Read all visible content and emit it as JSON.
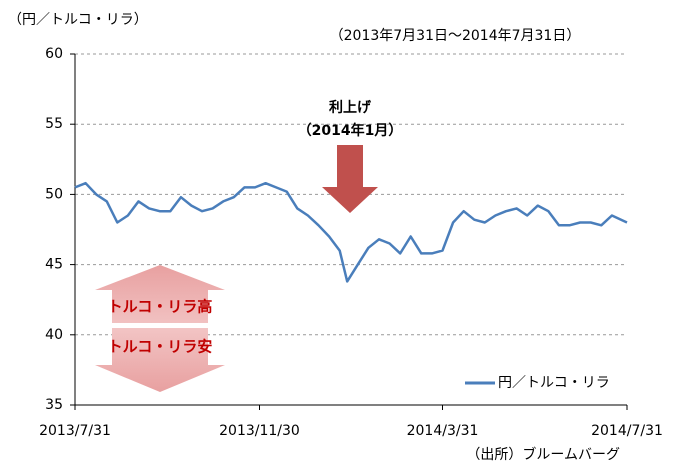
{
  "chart_data": {
    "type": "line",
    "y_label": "（円／トルコ・リラ）",
    "subtitle": "（2013年7月31日～2014年7月31日）",
    "annotation": {
      "title": "利上げ",
      "date": "（2014年1月）"
    },
    "arrow_labels": {
      "up": "トルコ・リラ高",
      "down": "トルコ・リラ安"
    },
    "source": "（出所）ブルームバーグ",
    "x": [
      "2013/7/31",
      "2013/8/7",
      "2013/8/14",
      "2013/8/21",
      "2013/8/28",
      "2013/9/4",
      "2013/9/11",
      "2013/9/18",
      "2013/9/25",
      "2013/10/2",
      "2013/10/9",
      "2013/10/16",
      "2013/10/23",
      "2013/10/30",
      "2013/11/6",
      "2013/11/13",
      "2013/11/20",
      "2013/11/27",
      "2013/12/4",
      "2013/12/11",
      "2013/12/18",
      "2013/12/25",
      "2014/1/1",
      "2014/1/8",
      "2014/1/15",
      "2014/1/22",
      "2014/1/27",
      "2014/2/3",
      "2014/2/10",
      "2014/2/17",
      "2014/2/24",
      "2014/3/3",
      "2014/3/10",
      "2014/3/17",
      "2014/3/24",
      "2014/3/31",
      "2014/4/7",
      "2014/4/14",
      "2014/4/21",
      "2014/4/28",
      "2014/5/5",
      "2014/5/12",
      "2014/5/19",
      "2014/5/26",
      "2014/6/2",
      "2014/6/9",
      "2014/6/16",
      "2014/6/23",
      "2014/6/30",
      "2014/7/7",
      "2014/7/14",
      "2014/7/21",
      "2014/7/31"
    ],
    "series": [
      {
        "name": "円／トルコ・リラ",
        "color": "#4a7ebb",
        "values": [
          50.5,
          50.8,
          50.0,
          49.5,
          48.0,
          48.5,
          49.5,
          49.0,
          48.8,
          48.8,
          49.8,
          49.2,
          48.8,
          49.0,
          49.5,
          49.8,
          50.5,
          50.5,
          50.8,
          50.5,
          50.2,
          49.0,
          48.5,
          47.8,
          47.0,
          46.0,
          43.8,
          45.0,
          46.2,
          46.8,
          46.5,
          45.8,
          47.0,
          45.8,
          45.8,
          46.0,
          48.0,
          48.8,
          48.2,
          48.0,
          48.5,
          48.8,
          49.0,
          48.5,
          49.2,
          48.8,
          47.8,
          47.8,
          48.0,
          48.0,
          47.8,
          48.5,
          48.0
        ]
      }
    ],
    "xlim": [
      "2013/7/31",
      "2014/7/31"
    ],
    "xticks": [
      "2013/7/31",
      "2013/11/30",
      "2014/3/31",
      "2014/7/31"
    ],
    "ylim": [
      35,
      60
    ],
    "yticks": [
      35,
      40,
      45,
      50,
      55,
      60
    ],
    "grid": true,
    "legend": "lower right"
  }
}
